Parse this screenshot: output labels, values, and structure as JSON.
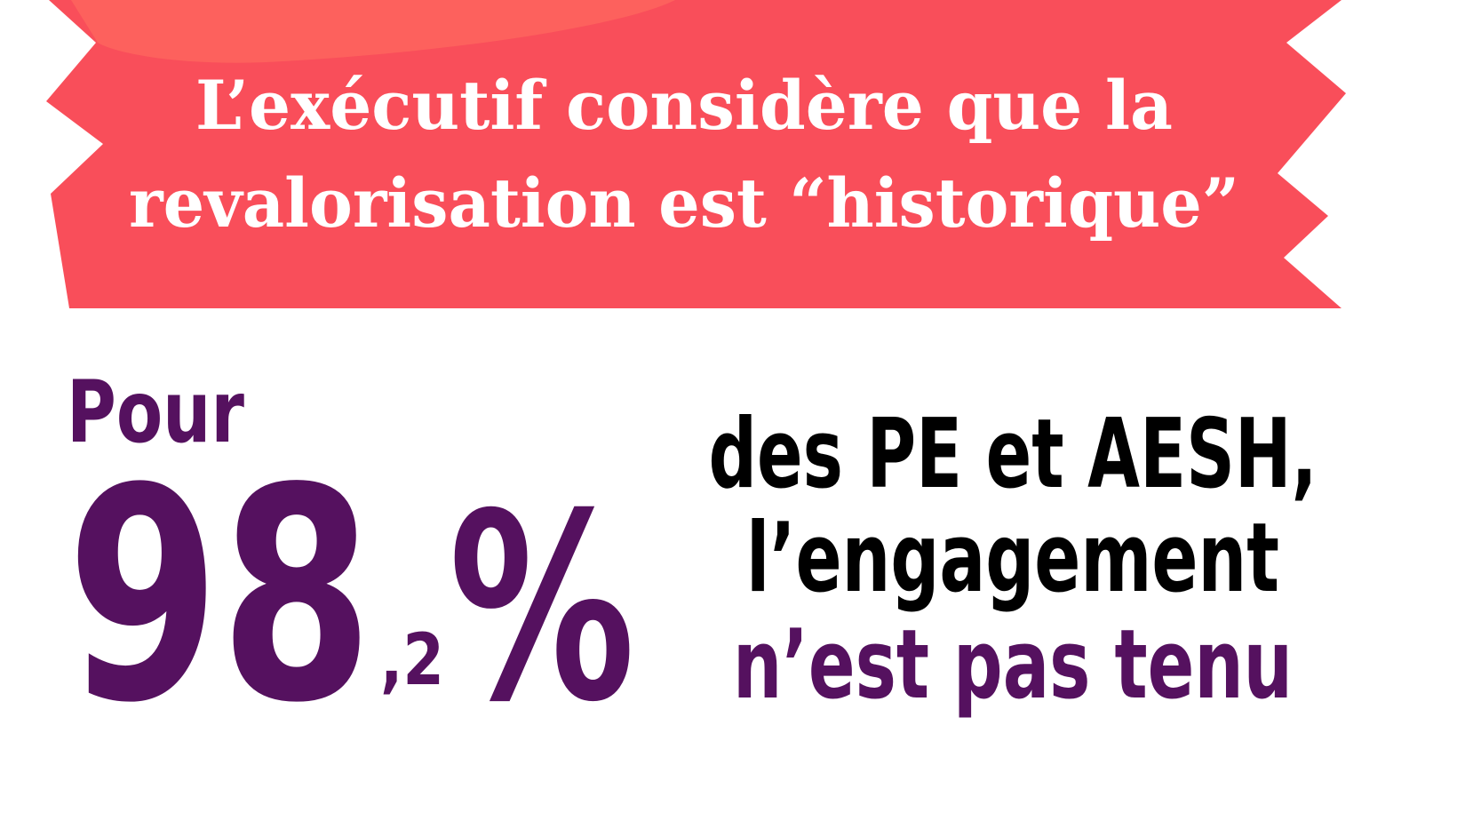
{
  "banner": {
    "lines": [
      "L’exécutif considère que la",
      "revalorisation est “historique”"
    ]
  },
  "stat": {
    "prefix": "Pour",
    "integer": "98",
    "decimal": ",2",
    "unit": "%"
  },
  "claim": {
    "lines": [
      "des PE et AESH,",
      "l’engagement",
      "n’est pas tenu"
    ]
  }
}
